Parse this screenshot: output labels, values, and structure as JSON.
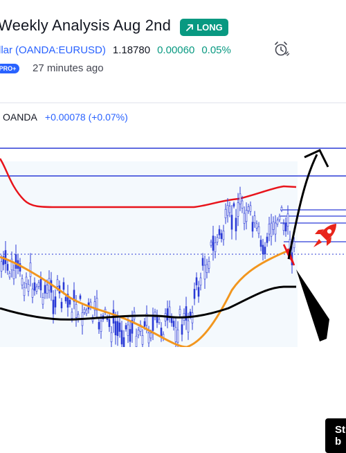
{
  "header": {
    "title": "Weekly Analysis Aug 2nd",
    "badge_label": "LONG",
    "symbol_prefix": "llar",
    "symbol": "(OANDA:EURUSD)",
    "price": "1.18780",
    "change": "0.00060",
    "change_pct": "0.05%",
    "pro_label": "PRO+",
    "time_ago": "27 minutes ago"
  },
  "chart": {
    "source": "OANDA",
    "change_text": "+0.00078 (+0.07%)",
    "note_text": "St b"
  },
  "colors": {
    "badge": "#089981",
    "link": "#2962ff",
    "up": "#089981",
    "bollinger": "#e8141b",
    "ema_fast": "#f2961e",
    "ema_slow": "#000000",
    "levels": "#2b3bd6",
    "rocket": "#e8251b",
    "candles": "#2b3bd6"
  },
  "icons": [
    "arrow-up-right-icon",
    "alarm-clock-icon",
    "rocket-icon"
  ]
}
